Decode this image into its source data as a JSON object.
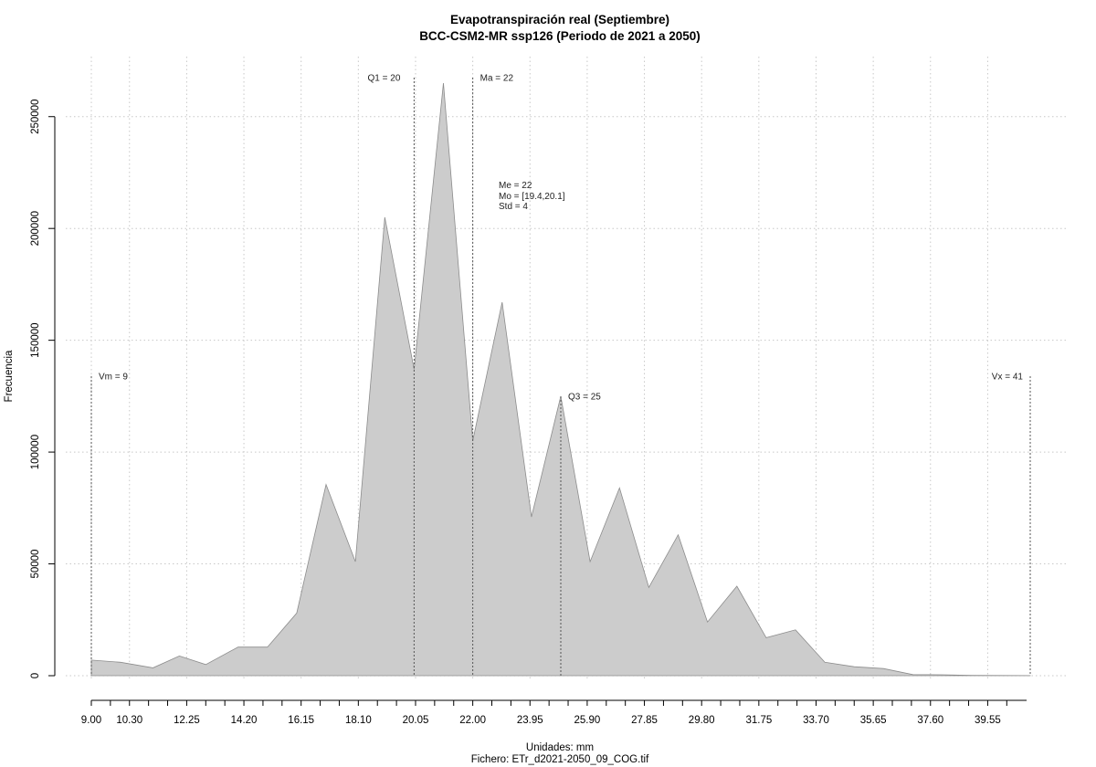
{
  "chart_data": {
    "type": "area",
    "title": "Evapotranspiración real (Septiembre)",
    "subtitle": "BCC-CSM2-MR ssp126 (Periodo de 2021 a 2050)",
    "xlabel": "Unidades: mm",
    "ylabel": "Frecuencia",
    "caption": "Fichero: ETr_d2021-2050_09_COG.tif",
    "fill_color": "#cccccc",
    "stroke_color": "#8c8c8c",
    "xlim": [
      9.0,
      41.0
    ],
    "ylim": [
      0,
      265000
    ],
    "grid": true,
    "x_tick_labels": [
      "9.00",
      "10.30",
      "12.25",
      "14.20",
      "16.15",
      "18.10",
      "20.05",
      "22.00",
      "23.95",
      "25.90",
      "27.85",
      "29.80",
      "31.75",
      "33.70",
      "35.65",
      "37.60",
      "39.55"
    ],
    "y_tick_labels": [
      "0",
      "50000",
      "100000",
      "150000",
      "200000",
      "250000"
    ],
    "y_tick_values": [
      0,
      50000,
      100000,
      150000,
      200000,
      250000
    ],
    "points": [
      {
        "x": 9.0,
        "y": 7000
      },
      {
        "x": 10.0,
        "y": 6000
      },
      {
        "x": 11.1,
        "y": 3500
      },
      {
        "x": 12.0,
        "y": 8800
      },
      {
        "x": 12.9,
        "y": 5000
      },
      {
        "x": 14.0,
        "y": 12800
      },
      {
        "x": 15.0,
        "y": 12800
      },
      {
        "x": 16.0,
        "y": 28000
      },
      {
        "x": 17.0,
        "y": 85500
      },
      {
        "x": 18.0,
        "y": 51000
      },
      {
        "x": 19.0,
        "y": 205000
      },
      {
        "x": 20.0,
        "y": 137000
      },
      {
        "x": 21.0,
        "y": 265000
      },
      {
        "x": 22.0,
        "y": 105000
      },
      {
        "x": 23.0,
        "y": 167000
      },
      {
        "x": 24.0,
        "y": 71000
      },
      {
        "x": 25.0,
        "y": 125000
      },
      {
        "x": 26.0,
        "y": 51000
      },
      {
        "x": 27.0,
        "y": 84000
      },
      {
        "x": 28.0,
        "y": 39500
      },
      {
        "x": 29.0,
        "y": 63000
      },
      {
        "x": 30.0,
        "y": 24000
      },
      {
        "x": 31.0,
        "y": 40000
      },
      {
        "x": 32.0,
        "y": 17000
      },
      {
        "x": 33.0,
        "y": 20500
      },
      {
        "x": 34.0,
        "y": 6000
      },
      {
        "x": 35.0,
        "y": 4000
      },
      {
        "x": 36.0,
        "y": 3200
      },
      {
        "x": 37.0,
        "y": 500
      },
      {
        "x": 38.0,
        "y": 400
      },
      {
        "x": 39.0,
        "y": 150
      },
      {
        "x": 40.0,
        "y": 100
      },
      {
        "x": 41.0,
        "y": 50
      }
    ],
    "reference_lines": [
      {
        "label": "Vm = 9",
        "x": 9.0
      },
      {
        "label": "Q1 = 20",
        "x": 20.0
      },
      {
        "label": "Ma = 22",
        "x": 22.0
      },
      {
        "label": "Q3 = 25",
        "x": 25.0
      },
      {
        "label": "Vx = 41",
        "x": 41.0
      }
    ],
    "stats": [
      "Me = 22",
      "Mo = [19.4,20.1]",
      "Std = 4"
    ]
  }
}
